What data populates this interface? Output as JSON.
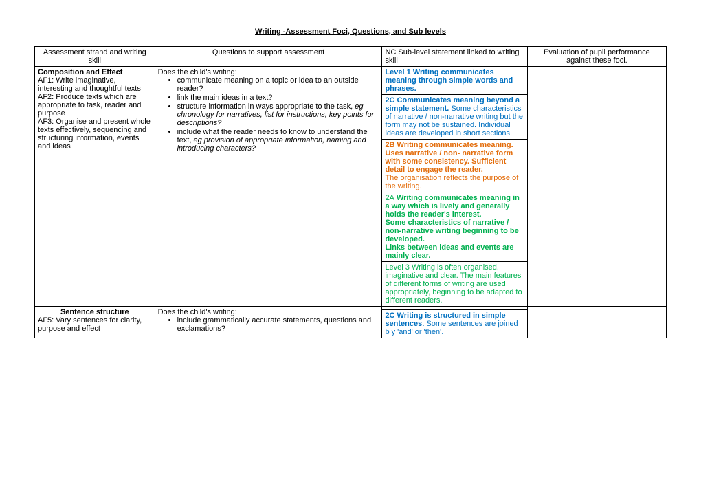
{
  "title": "Writing -Assessment Foci, Questions, and Sub levels",
  "headers": {
    "col1": "Assessment strand and writing skill",
    "col2": "Questions to support assessment",
    "col3": "NC Sub-level statement linked to writing skill",
    "col4": "Evaluation of pupil performance against these foci."
  },
  "row1": {
    "strand_title": "Composition and Effect",
    "strand_lines": [
      "AF1: Write imaginative, interesting and thoughtful texts",
      "AF2: Produce texts which are appropriate to task, reader and purpose",
      "AF3: Organise and present whole texts effectively, sequencing and structuring information, events and ideas"
    ],
    "q_intro": "Does the child's writing:",
    "q_items": [
      {
        "text": "communicate meaning on a topic  or idea to an outside reader?"
      },
      {
        "text": "link the main ideas in a text?"
      },
      {
        "text": "structure information in ways appropriate to the task, ",
        "italic": "eg chronology for narratives, list for instructions, key points for descriptions?"
      },
      {
        "text": "include what the reader needs to know to understand the text, ",
        "italic": "eg provision of appropriate information, naming and introducing characters?"
      }
    ],
    "levels": {
      "l1": "Level 1 Writing communicates meaning through simple words and phrases.",
      "l2c_bold": "2C Communicates meaning beyond a simple statement.",
      "l2c_rest": "Some characteristics of narrative / non-narrative writing but the form may not be sustained. Individual ideas are developed in short sections.",
      "l2b_bold": "2B Writing communicates meaning.",
      "l2b_bold2": "Uses narrative / non- narrative form with some consistency. Sufficient detail to engage the reader.",
      "l2b_rest": "The organisation reflects the purpose of the writing.",
      "l2a_pre": "2A",
      "l2a_bold": " Writing communicates meaning in a way  which is lively and generally holds the reader's interest.",
      "l2a_bold2": "Some characteristics of narrative / non-narrative writing beginning to be developed.",
      "l2a_bold3": "Links between ideas and events are mainly clear.",
      "l3": "Level 3 Writing is often organised, imaginative and clear. The main features of different forms of writing are used appropriately, beginning to be adapted to different readers."
    }
  },
  "row2": {
    "strand_title": "Sentence structure",
    "strand_lines": [
      "AF5: Vary sentences for clarity, purpose and effect"
    ],
    "q_intro": "Does the child's writing:",
    "q_items": [
      {
        "text": "include grammatically accurate statements, questions and exclamations?"
      }
    ],
    "levels": {
      "l2c_bold": "2C Writing is structured in simple sentences.",
      "l2c_rest": " Some sentences are joined b y 'and' or 'then'."
    }
  }
}
